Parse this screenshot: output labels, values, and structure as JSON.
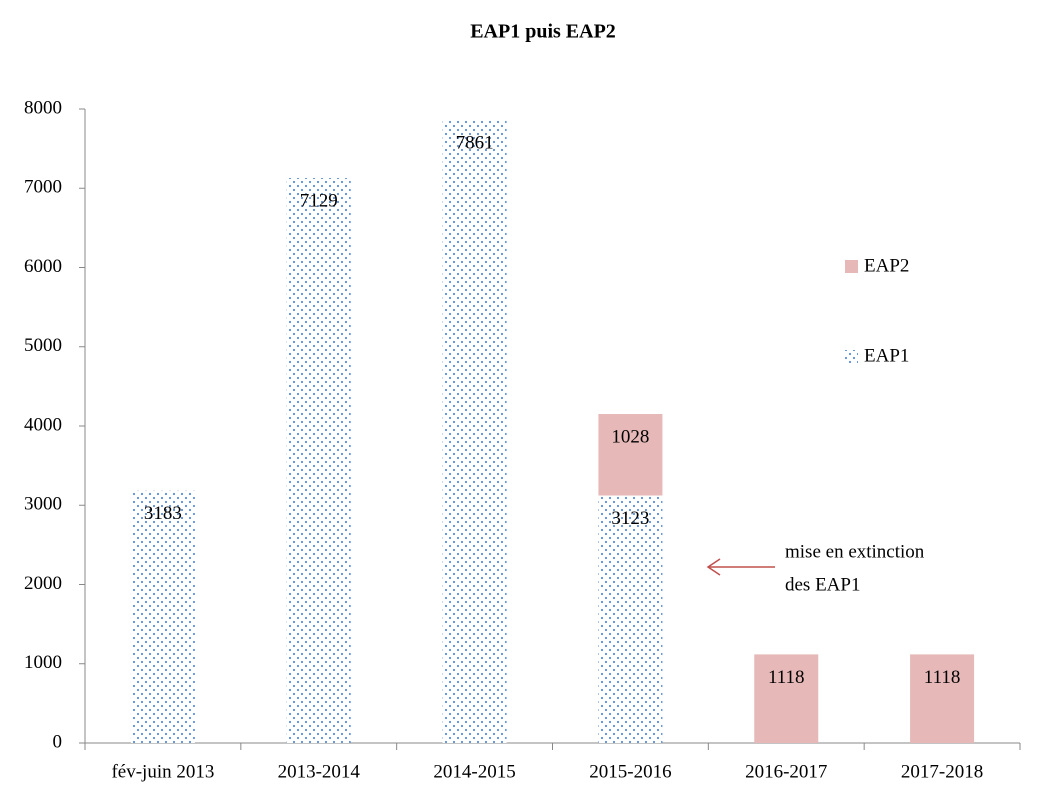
{
  "chart_data": {
    "type": "stacked_bar",
    "title": "EAP1 puis EAP2",
    "categories": [
      "fév-juin 2013",
      "2013-2014",
      "2014-2015",
      "2015-2016",
      "2016-2017",
      "2017-2018"
    ],
    "series": [
      {
        "name": "EAP1",
        "color": "#5b8fd4",
        "pattern": "dots",
        "values": [
          3183,
          7129,
          7861,
          3123,
          null,
          null
        ]
      },
      {
        "name": "EAP2",
        "color": "#e6b8b7",
        "values": [
          null,
          null,
          null,
          1028,
          1118,
          1118
        ]
      }
    ],
    "ylim": [
      0,
      8000
    ],
    "yticks": [
      0,
      1000,
      2000,
      3000,
      4000,
      5000,
      6000,
      7000,
      8000
    ],
    "grid": false,
    "legend": "right",
    "annotation": [
      "mise en extinction",
      "des EAP1"
    ]
  }
}
